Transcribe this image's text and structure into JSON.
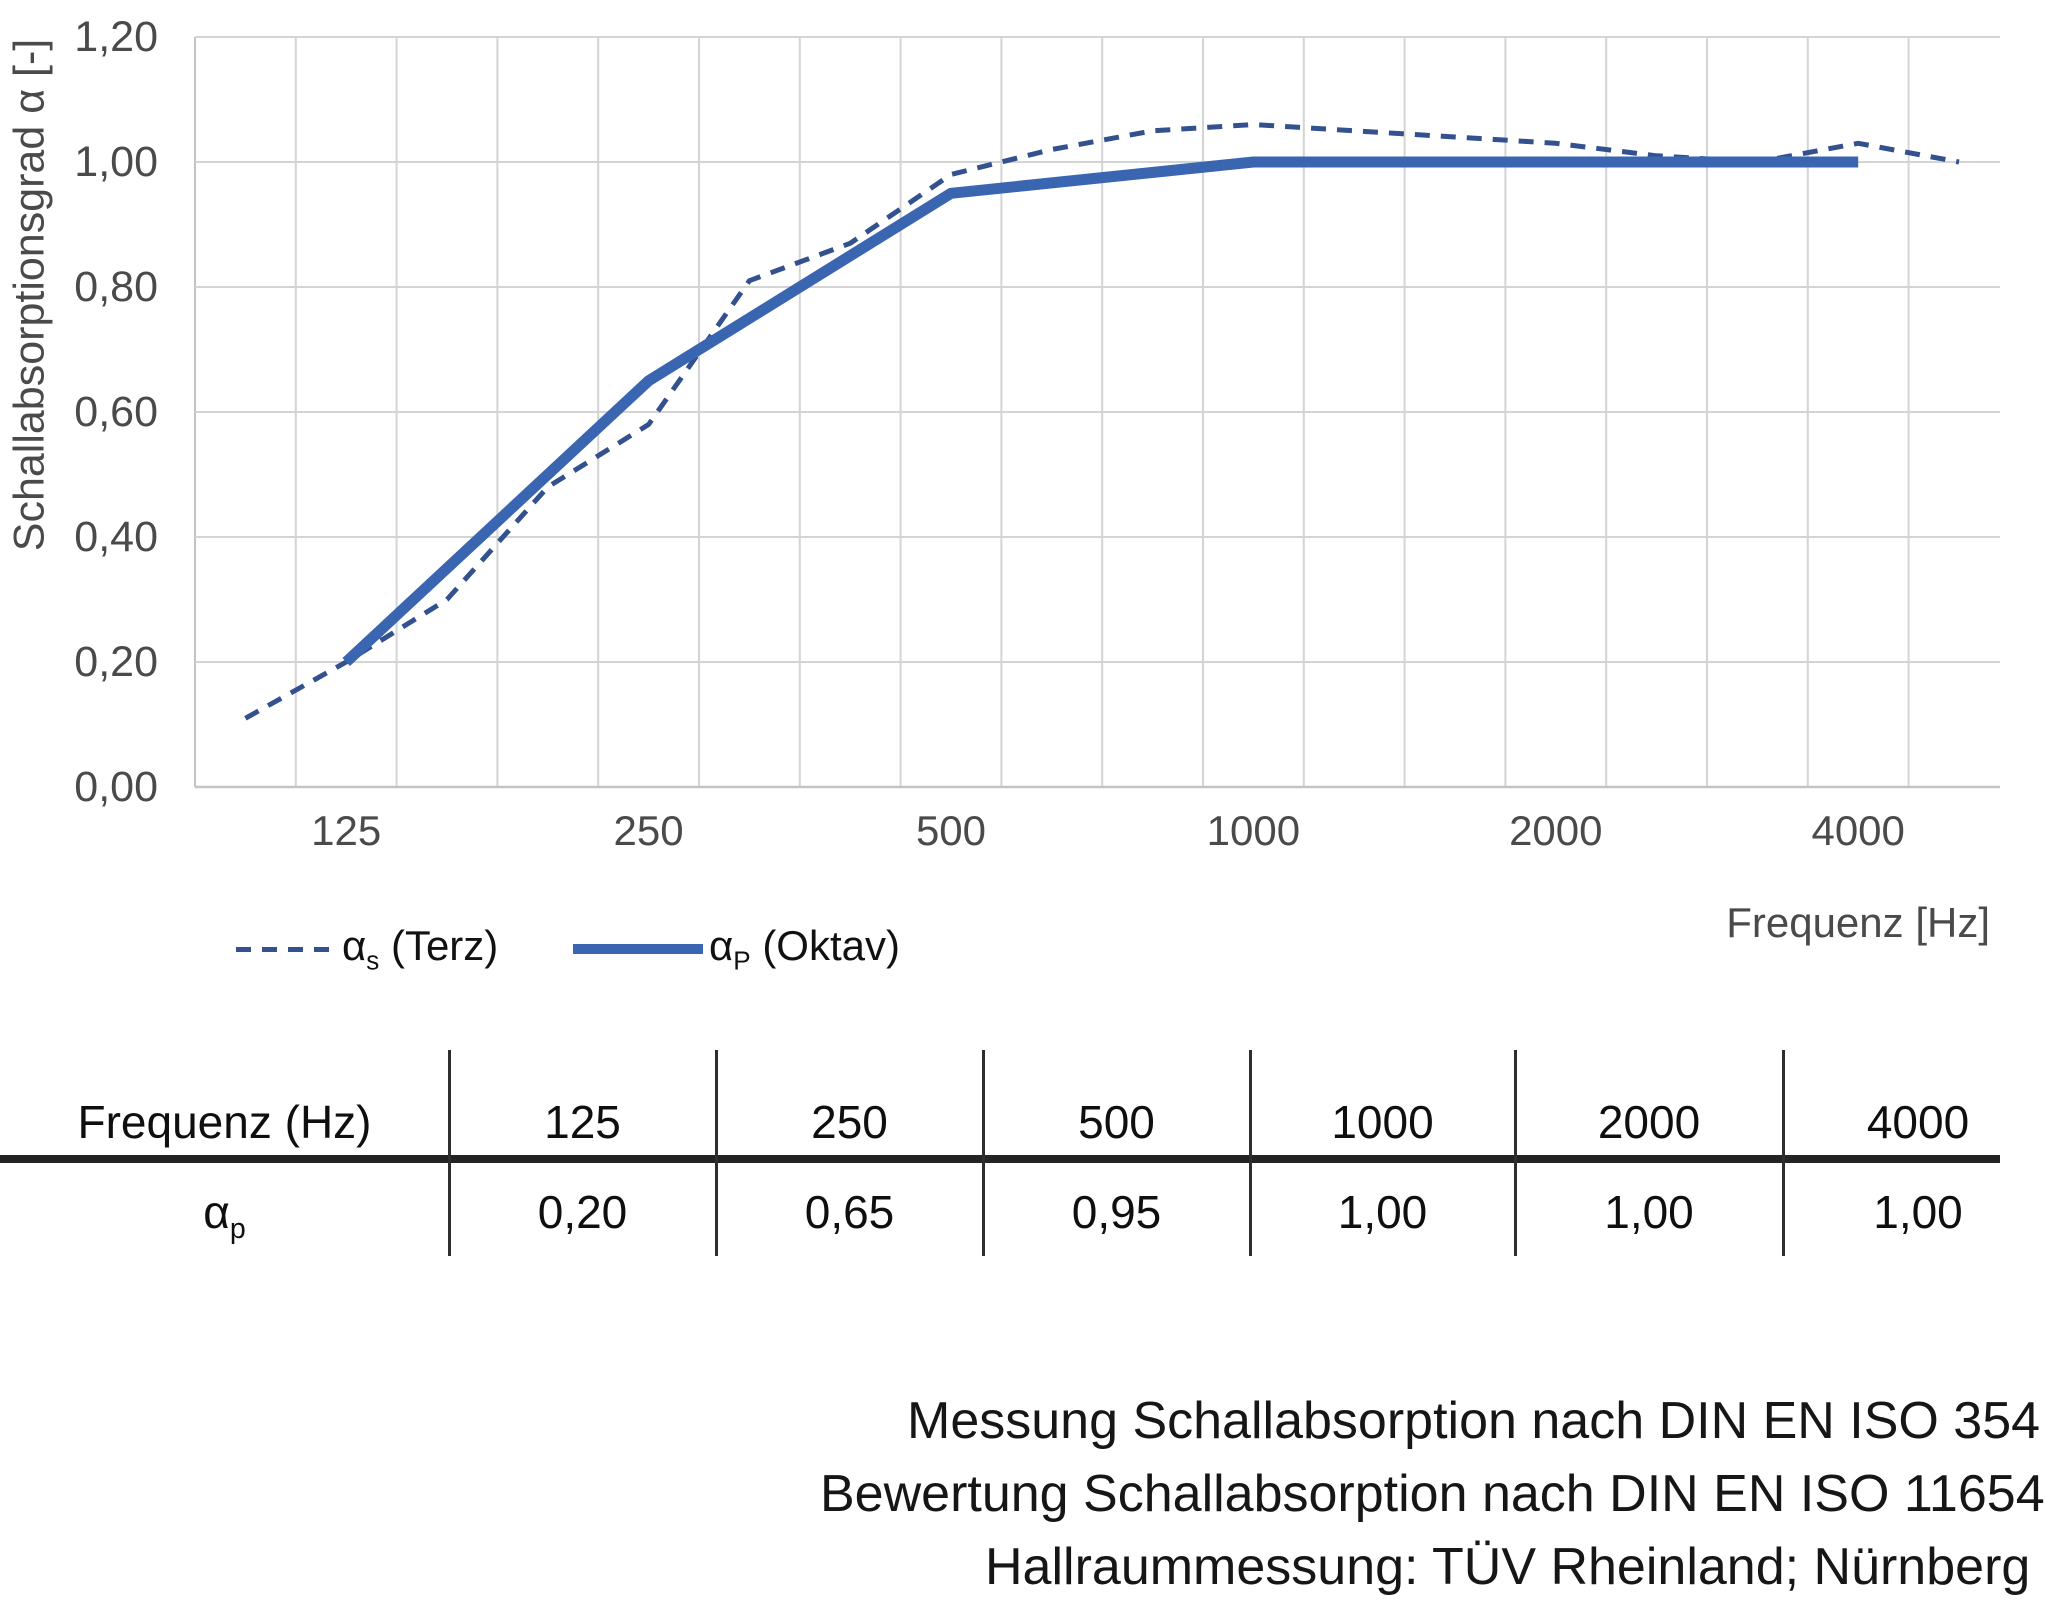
{
  "chart": {
    "y_axis_title": "Schallabsorptionsgrad α [-]",
    "x_axis_title": "Frequenz [Hz]",
    "y_tick_labels": [
      "1,20",
      "1,00",
      "0,80",
      "0,60",
      "0,40",
      "0,20",
      "0,00"
    ],
    "x_tick_labels": [
      "125",
      "250",
      "500",
      "1000",
      "2000",
      "4000"
    ],
    "legend": {
      "terz": {
        "base": "α",
        "sub": "s",
        "rest": " (Terz)"
      },
      "oktav": {
        "base": "α",
        "sub": "P",
        "rest": " (Oktav)"
      }
    }
  },
  "chart_data": {
    "type": "line",
    "title": "",
    "xlabel": "Frequenz [Hz]",
    "ylabel": "Schallabsorptionsgrad α [-]",
    "x_scale": "third-octave-category",
    "x_categories": [
      100,
      125,
      160,
      200,
      250,
      315,
      400,
      500,
      630,
      800,
      1000,
      1250,
      1600,
      2000,
      2500,
      3150,
      4000,
      5000
    ],
    "x_axis_labeled_ticks": [
      125,
      250,
      500,
      1000,
      2000,
      4000
    ],
    "ylim": [
      0.0,
      1.2
    ],
    "y_tick_step": 0.2,
    "grid": true,
    "legend_position": "bottom-left",
    "series": [
      {
        "name": "αs (Terz)",
        "style": "dashed",
        "color": "#33518f",
        "x": [
          100,
          125,
          160,
          200,
          250,
          315,
          400,
          500,
          630,
          800,
          1000,
          1250,
          1600,
          2000,
          2500,
          3150,
          4000,
          5000
        ],
        "values": [
          0.11,
          0.2,
          0.3,
          0.48,
          0.58,
          0.81,
          0.87,
          0.98,
          1.02,
          1.05,
          1.06,
          1.05,
          1.04,
          1.03,
          1.01,
          1.0,
          1.03,
          1.0
        ]
      },
      {
        "name": "αP (Oktav)",
        "style": "solid",
        "color": "#3a66b1",
        "x": [
          125,
          250,
          500,
          1000,
          2000,
          4000
        ],
        "values": [
          0.2,
          0.65,
          0.95,
          1.0,
          1.0,
          1.0
        ]
      }
    ]
  },
  "table": {
    "header_label": "Frequenz (Hz)",
    "header_freqs": [
      "125",
      "250",
      "500",
      "1000",
      "2000",
      "4000"
    ],
    "row_label_base": "α",
    "row_label_sub": "p",
    "row_values": [
      "0,20",
      "0,65",
      "0,95",
      "1,00",
      "1,00",
      "1,00"
    ]
  },
  "footer": {
    "lines": [
      "Messung Schallabsorption nach DIN EN ISO 354",
      "Bewertung Schallabsorption nach DIN EN ISO 11654",
      "Hallraummessung: TÜV Rheinland; Nürnberg"
    ]
  }
}
